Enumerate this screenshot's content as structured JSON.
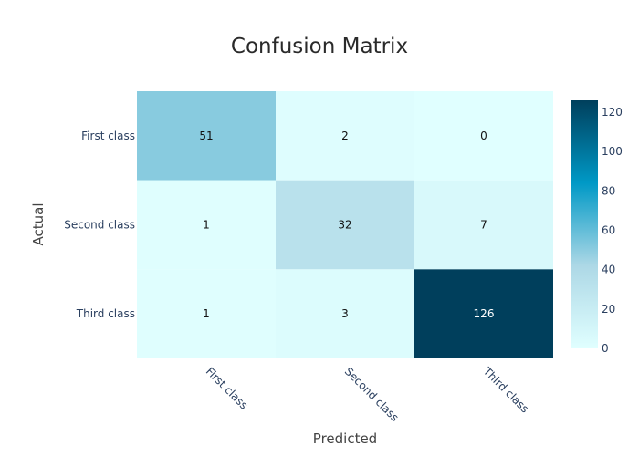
{
  "chart_data": {
    "type": "heatmap",
    "title": "Confusion Matrix",
    "xlabel": "Predicted",
    "ylabel": "Actual",
    "x_categories": [
      "First class",
      "Second class",
      "Third class"
    ],
    "y_categories": [
      "First class",
      "Second class",
      "Third class"
    ],
    "values": [
      [
        51,
        2,
        0
      ],
      [
        1,
        32,
        7
      ],
      [
        1,
        3,
        126
      ]
    ],
    "colorscale": [
      "#e0ffff",
      "#add8e6",
      "#0099c6",
      "#003f5c"
    ],
    "zmin": 0,
    "zmax": 126,
    "colorbar_ticks": [
      0,
      20,
      40,
      60,
      80,
      100,
      120
    ]
  }
}
